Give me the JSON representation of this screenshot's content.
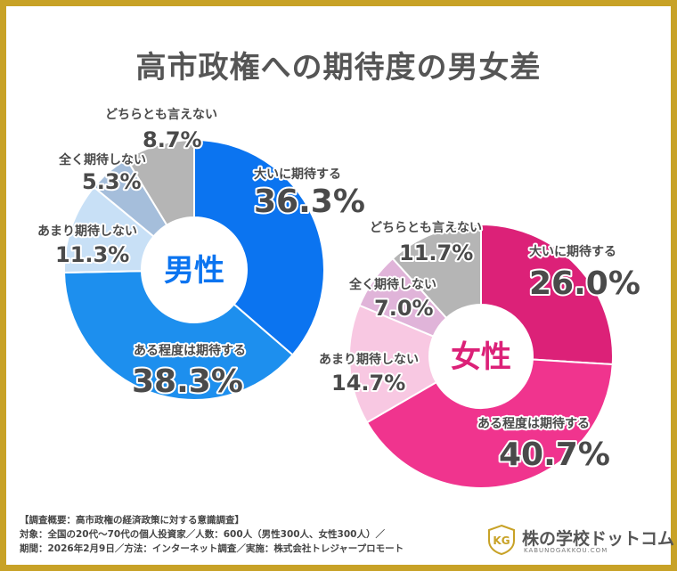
{
  "title": "高市政権への期待度の男女差",
  "chart_data": [
    {
      "type": "pie",
      "center_label": "男性",
      "categories": [
        "大いに期待する",
        "ある程度は期待する",
        "あまり期待しない",
        "全く期待しない",
        "どちらとも言えない"
      ],
      "values": [
        36.3,
        38.3,
        11.3,
        5.3,
        8.7
      ],
      "value_labels": [
        "36.3%",
        "38.3%",
        "11.3%",
        "5.3%",
        "8.7%"
      ],
      "colors": [
        "#0b74f0",
        "#1d8fee",
        "#c8e0f6",
        "#a5bedb",
        "#b5b5b5"
      ]
    },
    {
      "type": "pie",
      "center_label": "女性",
      "categories": [
        "大いに期待する",
        "ある程度は期待する",
        "あまり期待しない",
        "全く期待しない",
        "どちらとも言えない"
      ],
      "values": [
        26.0,
        40.7,
        14.7,
        7.0,
        11.7
      ],
      "value_labels": [
        "26.0%",
        "40.7%",
        "14.7%",
        "7.0%",
        "11.7%"
      ],
      "colors": [
        "#dc2178",
        "#f0348e",
        "#f8c8e2",
        "#e0b4d9",
        "#b5b5b5"
      ]
    }
  ],
  "footer": {
    "line1": "【調査概要：高市政権の経済政策に対する意識調査】",
    "line2": "対象：全国の20代〜70代の個人投資家／人数：600人（男性300人、女性300人）／",
    "line3": "期間：2026年2月9日／方法：インターネット調査／実施：株式会社トレジャープロモート"
  },
  "logo": {
    "mark": "KG",
    "name": "株の学校ドットコム",
    "url": "KABUNOGAKKOU.COM"
  }
}
